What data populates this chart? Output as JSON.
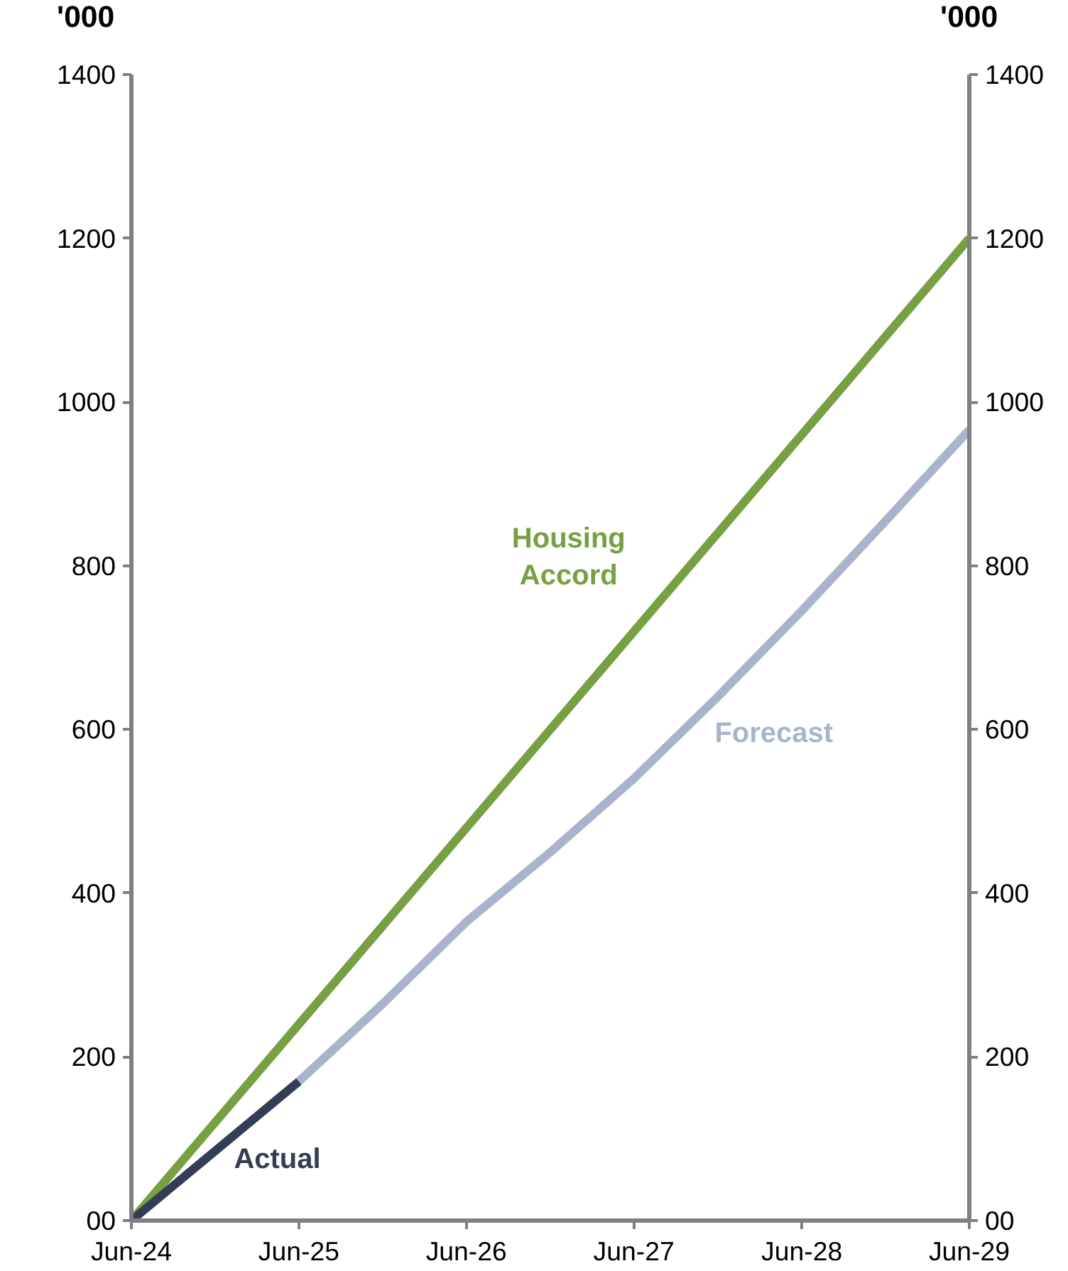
{
  "chart_data": {
    "type": "line",
    "ylabel": "'000",
    "y2label": "'000",
    "ylim": [
      0,
      1400
    ],
    "yticks": [
      {
        "value": 0,
        "label": "00"
      },
      200,
      400,
      600,
      800,
      1000,
      1200,
      1400
    ],
    "y2lim": [
      0,
      1400
    ],
    "y2ticks": [
      {
        "value": 0,
        "label": "00"
      },
      200,
      400,
      600,
      800,
      1000,
      1200,
      1400
    ],
    "xlim": [
      "2024-06",
      "2029-06"
    ],
    "xticks": [
      {
        "value": "2024-06",
        "label": "Jun-24"
      },
      {
        "value": "2025-06",
        "label": "Jun-25"
      },
      {
        "value": "2026-06",
        "label": "Jun-26"
      },
      {
        "value": "2027-06",
        "label": "Jun-27"
      },
      {
        "value": "2028-06",
        "label": "Jun-28"
      },
      {
        "value": "2029-06",
        "label": "Jun-29"
      }
    ],
    "grid": false,
    "marker": "none",
    "line_style": "solid",
    "series": [
      {
        "name": "Housing Accord",
        "color": "#77a043",
        "x": [
          "2024-06",
          "2029-06"
        ],
        "values": [
          0,
          1200
        ]
      },
      {
        "name": "Forecast",
        "color": "#a9b4cc",
        "x": [
          "2025-06",
          "2025-12",
          "2026-06",
          "2026-12",
          "2027-06",
          "2027-12",
          "2028-06",
          "2028-12",
          "2029-06"
        ],
        "values": [
          170,
          265,
          365,
          450,
          540,
          640,
          745,
          855,
          966
        ]
      },
      {
        "name": "Actual",
        "color": "#333d55",
        "x": [
          "2024-06",
          "2025-06"
        ],
        "values": [
          0,
          170
        ]
      }
    ]
  }
}
